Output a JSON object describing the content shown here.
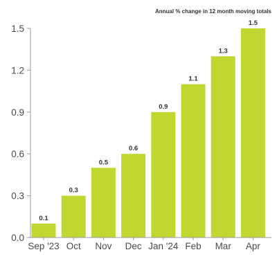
{
  "chart_data": {
    "type": "bar",
    "subtitle": "Annual % change in 12 month moving totals",
    "categories": [
      "Sep '23",
      "Oct",
      "Nov",
      "Dec",
      "Jan '24",
      "Feb",
      "Mar",
      "Apr"
    ],
    "values": [
      0.1,
      0.3,
      0.5,
      0.6,
      0.9,
      1.1,
      1.3,
      1.5
    ],
    "data_labels": [
      "0.1",
      "0.3",
      "0.5",
      "0.6",
      "0.9",
      "1.1",
      "1.3",
      "1.5"
    ],
    "ylim": [
      0,
      1.5
    ],
    "yticks": [
      "0.0",
      "0.3",
      "0.6",
      "0.9",
      "1.2",
      "1.5"
    ],
    "ytick_values": [
      0,
      0.3,
      0.6,
      0.9,
      1.2,
      1.5
    ],
    "grid": false,
    "bar_color": "#bfd730",
    "axis_color": "#9a9a9a"
  }
}
